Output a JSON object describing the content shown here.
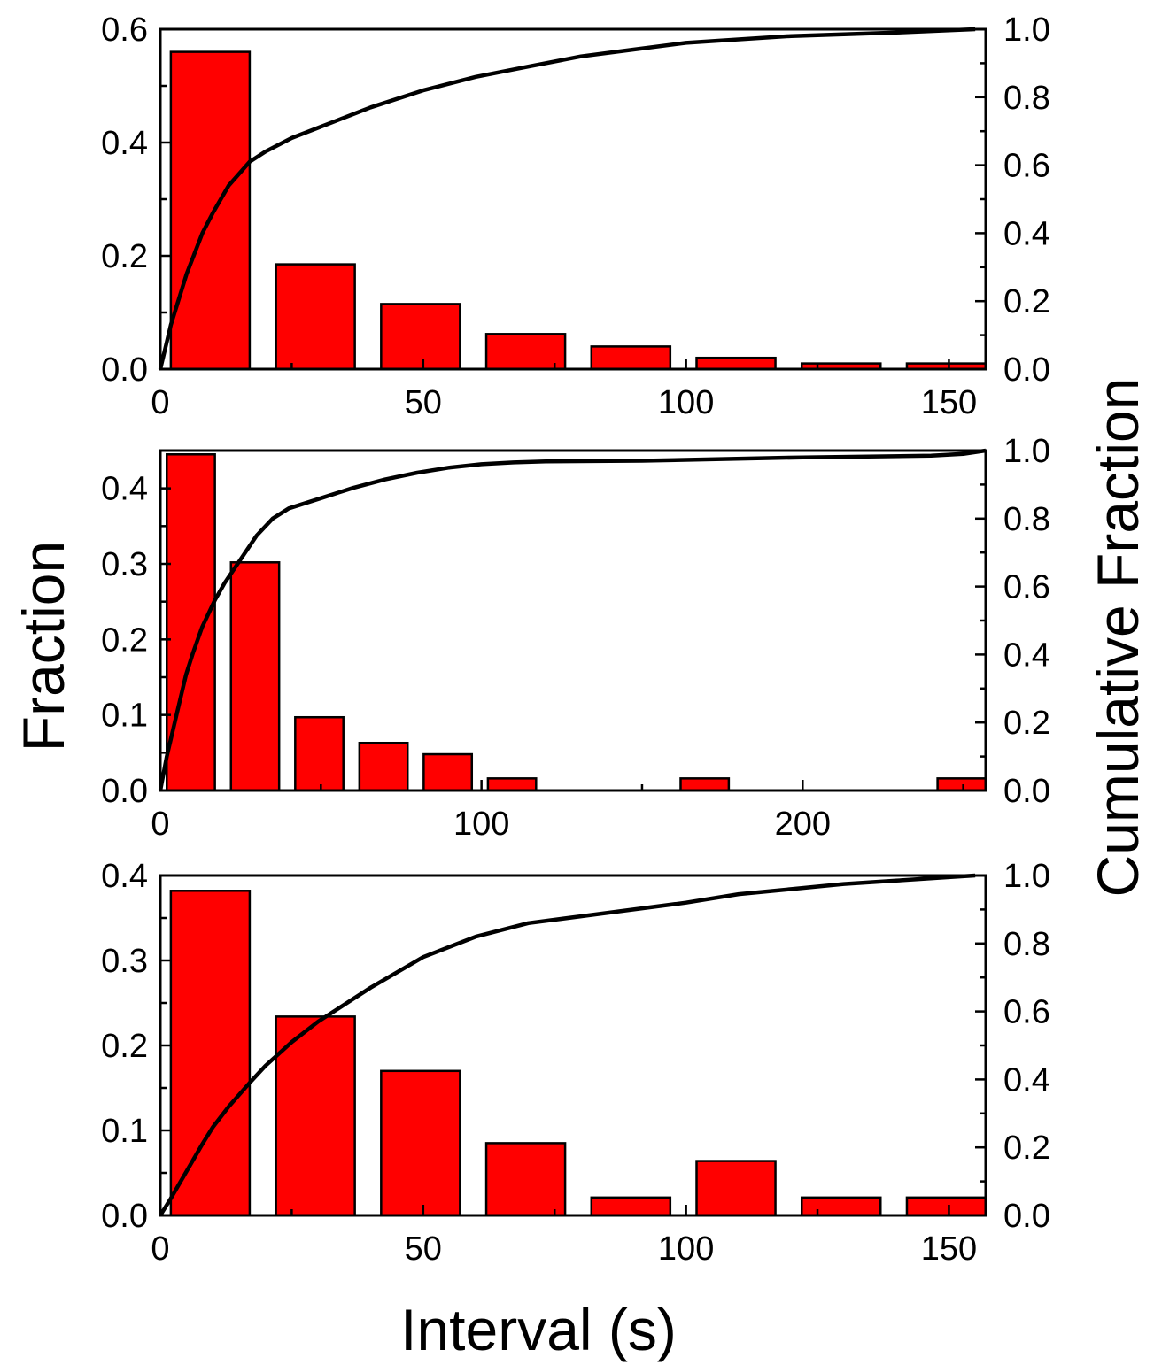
{
  "figure": {
    "ylabel": "Fraction",
    "y2label": "Cumulative Fraction",
    "xlabel": "Interval (s)",
    "bar_color": "#ff0000",
    "line_color": "#000000"
  },
  "chart_data": [
    {
      "type": "bar",
      "series": [
        {
          "kind": "histogram",
          "bins": [
            [
              2,
              17
            ],
            [
              22,
              37
            ],
            [
              42,
              57
            ],
            [
              62,
              77
            ],
            [
              82,
              97
            ],
            [
              102,
              117
            ],
            [
              122,
              137
            ],
            [
              142,
              157
            ]
          ],
          "values": [
            0.56,
            0.185,
            0.115,
            0.062,
            0.04,
            0.02,
            0.01,
            0.01
          ]
        },
        {
          "kind": "cumulative",
          "axis": "right",
          "x": [
            0,
            2,
            5,
            8,
            10,
            13,
            17,
            20,
            25,
            30,
            40,
            50,
            60,
            70,
            80,
            90,
            100,
            110,
            120,
            130,
            140,
            150,
            155
          ],
          "y": [
            0.0,
            0.13,
            0.28,
            0.4,
            0.46,
            0.54,
            0.61,
            0.64,
            0.68,
            0.71,
            0.77,
            0.82,
            0.86,
            0.89,
            0.92,
            0.94,
            0.96,
            0.97,
            0.98,
            0.985,
            0.99,
            0.997,
            1.0
          ]
        }
      ],
      "xlim": [
        0,
        157
      ],
      "ylim": [
        0,
        0.6
      ],
      "y2lim": [
        0,
        1.0
      ],
      "xticks": [
        0,
        50,
        100,
        150
      ],
      "xticklabels": [
        "0",
        "50",
        "100",
        "150"
      ],
      "yticks": [
        0,
        0.2,
        0.4,
        0.6
      ],
      "yticklabels": [
        "0.0",
        "0.2",
        "0.4",
        "0.6"
      ],
      "y2ticks": [
        0,
        0.2,
        0.4,
        0.6,
        0.8,
        1.0
      ],
      "y2ticklabels": [
        "0.0",
        "0.2",
        "0.4",
        "0.6",
        "0.8",
        "1.0"
      ]
    },
    {
      "type": "bar",
      "series": [
        {
          "kind": "histogram",
          "bins": [
            [
              2,
              17
            ],
            [
              22,
              37
            ],
            [
              42,
              57
            ],
            [
              62,
              77
            ],
            [
              82,
              97
            ],
            [
              102,
              117
            ],
            [
              162,
              177
            ],
            [
              242,
              257
            ]
          ],
          "values": [
            0.445,
            0.302,
            0.097,
            0.063,
            0.048,
            0.016,
            0.016,
            0.016
          ]
        },
        {
          "kind": "cumulative",
          "axis": "right",
          "x": [
            0,
            2,
            5,
            8,
            10,
            13,
            17,
            20,
            25,
            30,
            35,
            40,
            50,
            60,
            70,
            80,
            90,
            100,
            110,
            120,
            150,
            200,
            240,
            250,
            257
          ],
          "y": [
            0.0,
            0.1,
            0.22,
            0.34,
            0.4,
            0.48,
            0.56,
            0.61,
            0.68,
            0.75,
            0.8,
            0.83,
            0.86,
            0.89,
            0.915,
            0.935,
            0.95,
            0.96,
            0.965,
            0.968,
            0.97,
            0.98,
            0.985,
            0.99,
            1.0
          ]
        }
      ],
      "xlim": [
        0,
        257
      ],
      "ylim": [
        0,
        0.45
      ],
      "y2lim": [
        0,
        1.0
      ],
      "xticks": [
        0,
        100,
        200
      ],
      "xticklabels": [
        "0",
        "100",
        "200"
      ],
      "yticks": [
        0,
        0.1,
        0.2,
        0.3,
        0.4
      ],
      "yticklabels": [
        "0.0",
        "0.1",
        "0.2",
        "0.3",
        "0.4"
      ],
      "y2ticks": [
        0,
        0.2,
        0.4,
        0.6,
        0.8,
        1.0
      ],
      "y2ticklabels": [
        "0.0",
        "0.2",
        "0.4",
        "0.6",
        "0.8",
        "1.0"
      ]
    },
    {
      "type": "bar",
      "series": [
        {
          "kind": "histogram",
          "bins": [
            [
              2,
              17
            ],
            [
              22,
              37
            ],
            [
              42,
              57
            ],
            [
              62,
              77
            ],
            [
              82,
              97
            ],
            [
              102,
              117
            ],
            [
              122,
              137
            ],
            [
              142,
              157
            ]
          ],
          "values": [
            0.382,
            0.234,
            0.17,
            0.085,
            0.021,
            0.064,
            0.021,
            0.021
          ]
        },
        {
          "kind": "cumulative",
          "axis": "right",
          "x": [
            0,
            2,
            5,
            8,
            10,
            13,
            17,
            20,
            25,
            30,
            40,
            50,
            60,
            70,
            80,
            90,
            100,
            110,
            120,
            130,
            140,
            150,
            155
          ],
          "y": [
            0.0,
            0.05,
            0.13,
            0.21,
            0.26,
            0.32,
            0.39,
            0.44,
            0.51,
            0.57,
            0.67,
            0.76,
            0.82,
            0.86,
            0.88,
            0.9,
            0.92,
            0.945,
            0.96,
            0.975,
            0.985,
            0.995,
            1.0
          ]
        }
      ],
      "xlim": [
        0,
        157
      ],
      "ylim": [
        0,
        0.4
      ],
      "y2lim": [
        0,
        1.0
      ],
      "xticks": [
        0,
        50,
        100,
        150
      ],
      "xticklabels": [
        "0",
        "50",
        "100",
        "150"
      ],
      "yticks": [
        0,
        0.1,
        0.2,
        0.3,
        0.4
      ],
      "yticklabels": [
        "0.0",
        "0.1",
        "0.2",
        "0.3",
        "0.4"
      ],
      "y2ticks": [
        0,
        0.2,
        0.4,
        0.6,
        0.8,
        1.0
      ],
      "y2ticklabels": [
        "0.0",
        "0.2",
        "0.4",
        "0.6",
        "0.8",
        "1.0"
      ]
    }
  ]
}
